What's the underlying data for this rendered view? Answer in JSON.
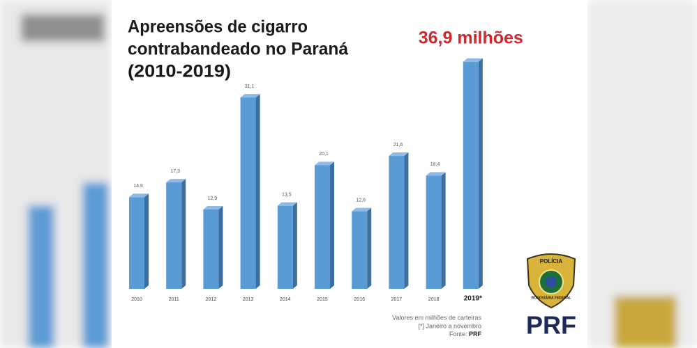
{
  "chart_data": {
    "type": "bar3d",
    "title": [
      "Apreensões de cigarro",
      "contrabandeado no Paraná",
      "(2010-2019)"
    ],
    "categories": [
      "2010",
      "2011",
      "2012",
      "2013",
      "2014",
      "2015",
      "2016",
      "2017",
      "2018",
      "2019*"
    ],
    "values": [
      14.9,
      17.3,
      12.9,
      31.1,
      13.5,
      20.1,
      12.6,
      21.6,
      18.4,
      36.9
    ],
    "value_labels": [
      "14,9",
      "17,3",
      "12,9",
      "31,1",
      "13,5",
      "20,1",
      "12,6",
      "21,6",
      "18,4",
      "36,9 milhões"
    ],
    "color": "#5b9bd5",
    "highlight_color": "#d1262c",
    "notes": [
      "Valores em milhões de carteiras",
      "[*] Janeiro a novembro"
    ],
    "source_label": "Fonte:",
    "source": "PRF"
  },
  "logo": {
    "top": "POLÍCIA",
    "bottom": "RODOVIÁRIA FEDERAL",
    "name": "PRF"
  }
}
